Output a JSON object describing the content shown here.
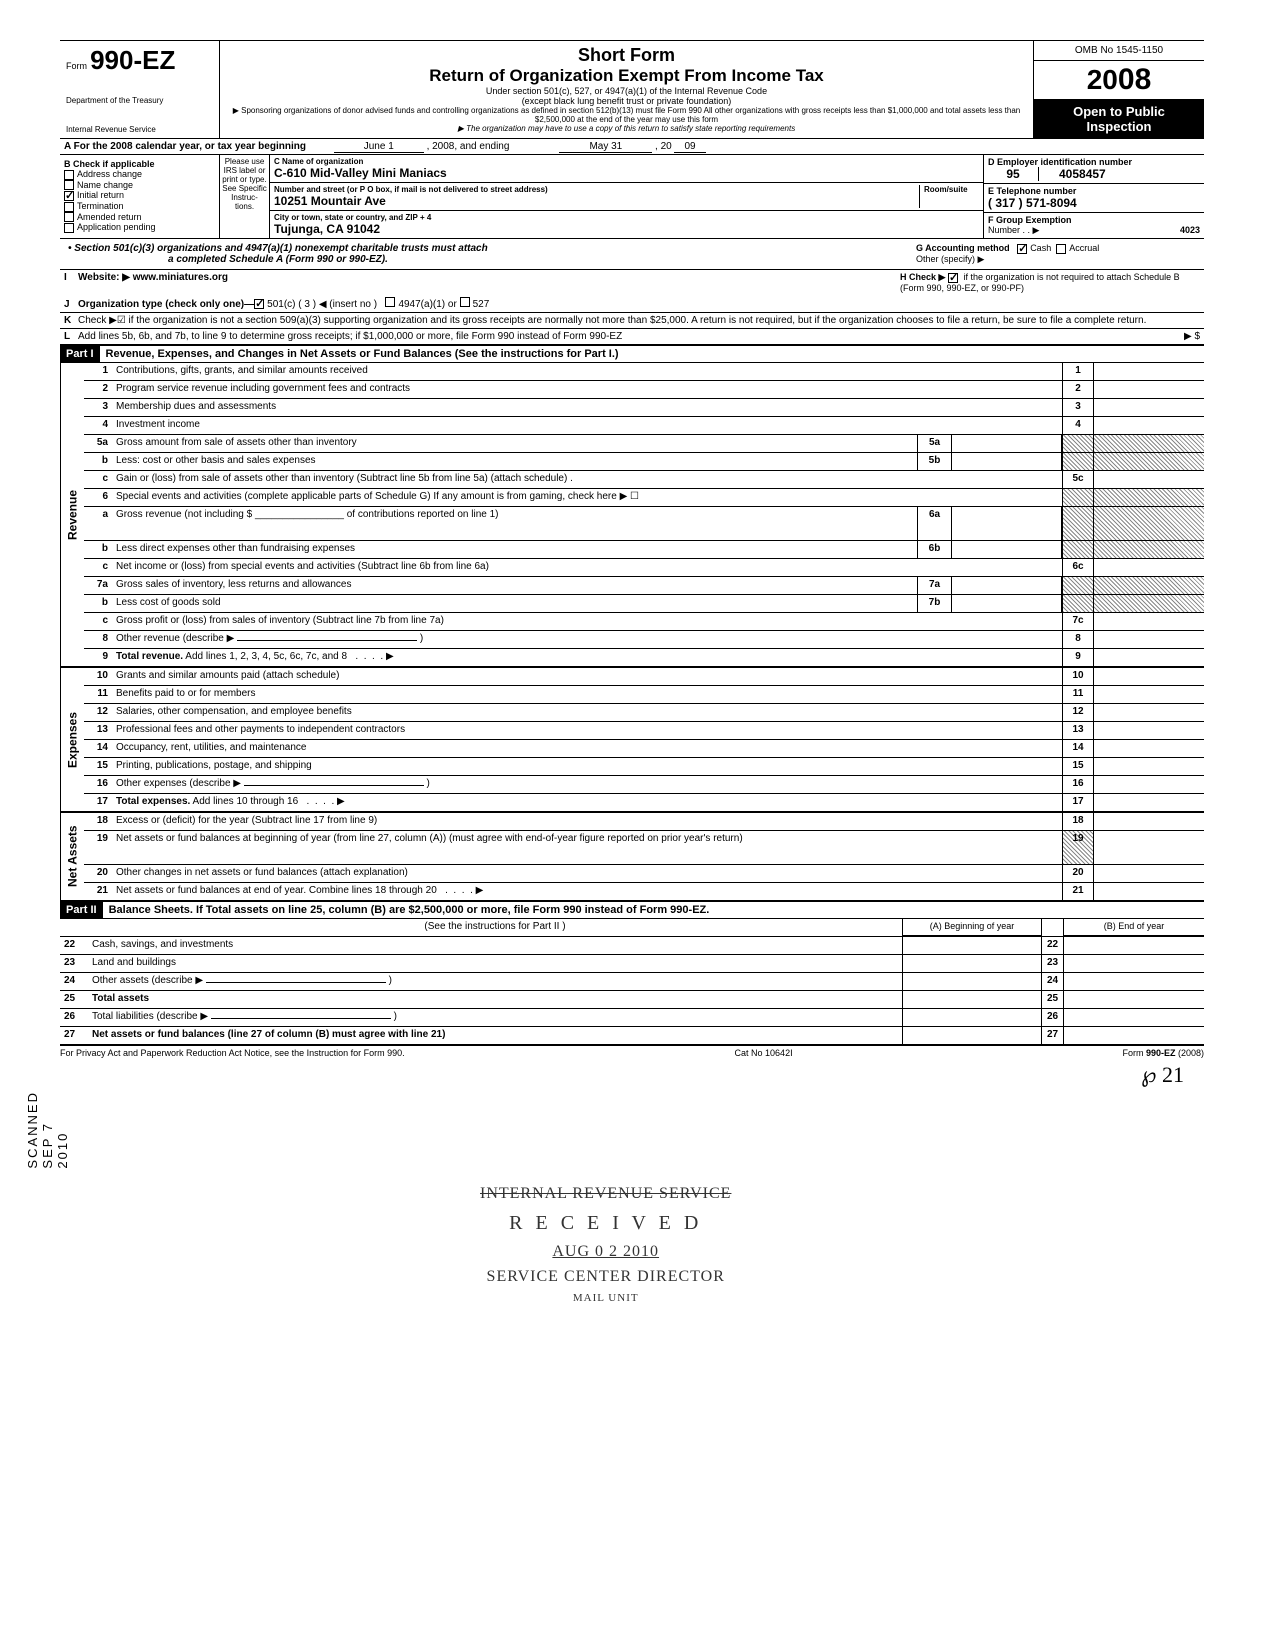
{
  "header": {
    "form_label": "Form",
    "form_number": "990-EZ",
    "dept1": "Department of the Treasury",
    "dept2": "Internal Revenue Service",
    "title_short": "Short Form",
    "title_main": "Return of Organization Exempt From Income Tax",
    "subtitle1": "Under section 501(c), 527, or 4947(a)(1) of the Internal Revenue Code",
    "subtitle2": "(except black lung benefit trust or private foundation)",
    "subtitle3": "▶ Sponsoring organizations of donor advised funds and controlling organizations as defined in section 512(b)(13) must file Form 990  All other organizations with gross receipts less than $1,000,000 and total assets less than $2,500,000 at the end of the year may use this form",
    "subtitle4": "▶ The organization may have to use a copy of this return to satisfy state reporting requirements",
    "omb": "OMB No 1545-1150",
    "year_prefix": "20",
    "year_suffix": "08",
    "inspection1": "Open to Public",
    "inspection2": "Inspection"
  },
  "row_a": {
    "label": "A  For the 2008 calendar year, or tax year beginning",
    "begin": "June 1",
    "mid": ", 2008, and ending",
    "end": "May 31",
    "suffix": ", 20",
    "suffix_val": "09"
  },
  "col_b": {
    "header": "B  Check if applicable",
    "items": [
      "Address change",
      "Name change",
      "Initial return",
      "Termination",
      "Amended return",
      "Application pending"
    ],
    "checked_idx": 2
  },
  "col_irs": "Please use IRS label or print or type. See Specific Instruc-tions.",
  "col_c": {
    "label_c": "C  Name of organization",
    "org_name": "C-610 Mid-Valley Mini Maniacs",
    "label_addr": "Number and street (or P O  box, if mail is not delivered to street address)",
    "addr_suite": "Room/suite",
    "street": "10251 Mountair Ave",
    "label_city": "City or town, state or country, and ZIP + 4",
    "city": "Tujunga, CA 91042"
  },
  "col_right": {
    "label_d": "D  Employer identification number",
    "ein1": "95",
    "ein2": "4058457",
    "label_e": "E  Telephone number",
    "phone": "( 317 )          571-8094",
    "label_f": "F  Group Exemption",
    "f2": "Number  .  .  ▶",
    "f_val": "4023"
  },
  "sec_347": {
    "text1": "•  Section 501(c)(3) organizations and 4947(a)(1) nonexempt charitable trusts must attach",
    "text2": "a completed Schedule A (Form 990 or 990-EZ).",
    "g_label": "G  Accounting method",
    "g_cash": "Cash",
    "g_accrual": "Accrual",
    "g_other": "Other (specify) ▶"
  },
  "line_i": {
    "letter": "I",
    "label": "Website: ▶",
    "value": "www.miniatures.org",
    "h_text": "H  Check ▶",
    "h_text2": "if the organization is not required to attach Schedule B (Form 990, 990-EZ, or 990-PF)"
  },
  "line_j": {
    "letter": "J",
    "label": "Organization type (check only one)—",
    "opt1": "501(c) (  3  ) ◀ (insert no )",
    "opt2": "4947(a)(1) or",
    "opt3": "527"
  },
  "line_k": {
    "letter": "K",
    "text": "Check ▶☑  if the organization is not a section 509(a)(3) supporting organization and its gross receipts are normally not more than $25,000. A return is not required, but if the organization chooses to file a return, be sure to file a complete return."
  },
  "line_l": {
    "letter": "L",
    "text": "Add lines 5b, 6b, and 7b, to line 9 to determine gross receipts; if $1,000,000 or more, file Form 990 instead of Form 990-EZ",
    "arrow": "▶ $"
  },
  "part1": {
    "label": "Part I",
    "title": "Revenue, Expenses, and Changes in Net Assets or Fund Balances (See the instructions for Part I.)"
  },
  "revenue_rows": [
    {
      "n": "1",
      "d": "Contributions, gifts, grants, and similar amounts received",
      "r": "1"
    },
    {
      "n": "2",
      "d": "Program service revenue including government fees and contracts",
      "r": "2"
    },
    {
      "n": "3",
      "d": "Membership dues and assessments",
      "r": "3"
    },
    {
      "n": "4",
      "d": "Investment income",
      "r": "4"
    },
    {
      "n": "5a",
      "d": "Gross amount from sale of assets other than inventory",
      "m": "5a",
      "shaded": true
    },
    {
      "n": "b",
      "d": "Less: cost or other basis and sales expenses",
      "m": "5b",
      "shaded": true
    },
    {
      "n": "c",
      "d": "Gain or (loss) from sale of assets other than inventory (Subtract line 5b from line 5a) (attach schedule) .",
      "r": "5c"
    },
    {
      "n": "6",
      "d": "Special events and activities (complete applicable parts of Schedule G)  If any amount is from gaming,  check here  ▶  ☐",
      "shaded": true
    },
    {
      "n": "a",
      "d": "Gross revenue (not including $ ________________ of contributions reported on line 1)",
      "m": "6a",
      "shaded": true,
      "tall": true
    },
    {
      "n": "b",
      "d": "Less  direct expenses other than fundraising expenses",
      "m": "6b",
      "shaded": true
    },
    {
      "n": "c",
      "d": "Net income or (loss) from special events and activities (Subtract line 6b from line 6a)",
      "r": "6c"
    },
    {
      "n": "7a",
      "d": "Gross sales of inventory, less returns and allowances",
      "m": "7a",
      "shaded": true
    },
    {
      "n": "b",
      "d": "Less  cost of goods sold",
      "m": "7b",
      "shaded": true
    },
    {
      "n": "c",
      "d": "Gross profit or (loss) from sales of inventory (Subtract line 7b from line 7a)",
      "r": "7c"
    },
    {
      "n": "8",
      "d": "Other revenue (describe ▶",
      "r": "8",
      "paren": true
    },
    {
      "n": "9",
      "d": "Total revenue. Add lines 1, 2, 3, 4, 5c, 6c, 7c, and 8",
      "r": "9",
      "bold": true,
      "arrow": true
    }
  ],
  "expense_rows": [
    {
      "n": "10",
      "d": "Grants and similar amounts paid (attach schedule)",
      "r": "10"
    },
    {
      "n": "11",
      "d": "Benefits paid to or for members",
      "r": "11"
    },
    {
      "n": "12",
      "d": "Salaries, other compensation, and employee benefits",
      "r": "12"
    },
    {
      "n": "13",
      "d": "Professional fees and other payments to independent contractors",
      "r": "13"
    },
    {
      "n": "14",
      "d": "Occupancy, rent, utilities, and maintenance",
      "r": "14"
    },
    {
      "n": "15",
      "d": "Printing, publications, postage, and shipping",
      "r": "15"
    },
    {
      "n": "16",
      "d": "Other expenses (describe ▶",
      "r": "16",
      "paren": true
    },
    {
      "n": "17",
      "d": "Total expenses. Add lines 10 through 16",
      "r": "17",
      "bold": true,
      "arrow": true
    }
  ],
  "netasset_rows": [
    {
      "n": "18",
      "d": "Excess or (deficit) for the year (Subtract line 17 from line 9)",
      "r": "18"
    },
    {
      "n": "19",
      "d": "Net assets or fund balances at beginning of year (from line 27, column (A)) (must agree with end-of-year figure reported on prior year's return)",
      "r": "19",
      "tall": true,
      "shaded_top": true
    },
    {
      "n": "20",
      "d": "Other changes in net assets or fund balances (attach explanation)",
      "r": "20"
    },
    {
      "n": "21",
      "d": "Net assets or fund balances at end of year. Combine lines 18 through 20",
      "r": "21",
      "arrow": true
    }
  ],
  "part2": {
    "label": "Part II",
    "title": "Balance Sheets. If Total assets on line 25, column (B) are $2,500,000 or more, file Form 990 instead of Form 990-EZ.",
    "instr": "(See the instructions for Part II )",
    "colA": "(A) Beginning of year",
    "colB": "(B) End of year"
  },
  "balance_rows": [
    {
      "n": "22",
      "d": "Cash, savings, and investments",
      "r": "22"
    },
    {
      "n": "23",
      "d": "Land and buildings",
      "r": "23"
    },
    {
      "n": "24",
      "d": "Other assets (describe ▶",
      "r": "24",
      "paren": true
    },
    {
      "n": "25",
      "d": "Total assets",
      "r": "25",
      "bold": true
    },
    {
      "n": "26",
      "d": "Total liabilities (describe ▶",
      "r": "26",
      "paren": true
    },
    {
      "n": "27",
      "d": "Net assets or fund balances (line 27 of column (B) must agree with line 21)",
      "r": "27",
      "bold": true
    }
  ],
  "stamp": {
    "l1": "INTERNAL REVENUE SERVICE",
    "l2": "R E C E I V E D",
    "l3": "AUG  0 2  2010",
    "l4": "SERVICE CENTER DIRECTOR",
    "l5": "MAIL UNIT"
  },
  "footer": {
    "left": "For Privacy Act and Paperwork Reduction Act Notice, see the Instruction for Form 990.",
    "center": "Cat  No  10642I",
    "right": "Form 990-EZ (2008)"
  },
  "side_labels": {
    "revenue": "Revenue",
    "expenses": "Expenses",
    "netassets": "Net Assets"
  },
  "vert": "SCANNED  SEP  7  2010",
  "handwrite": "℘   21"
}
